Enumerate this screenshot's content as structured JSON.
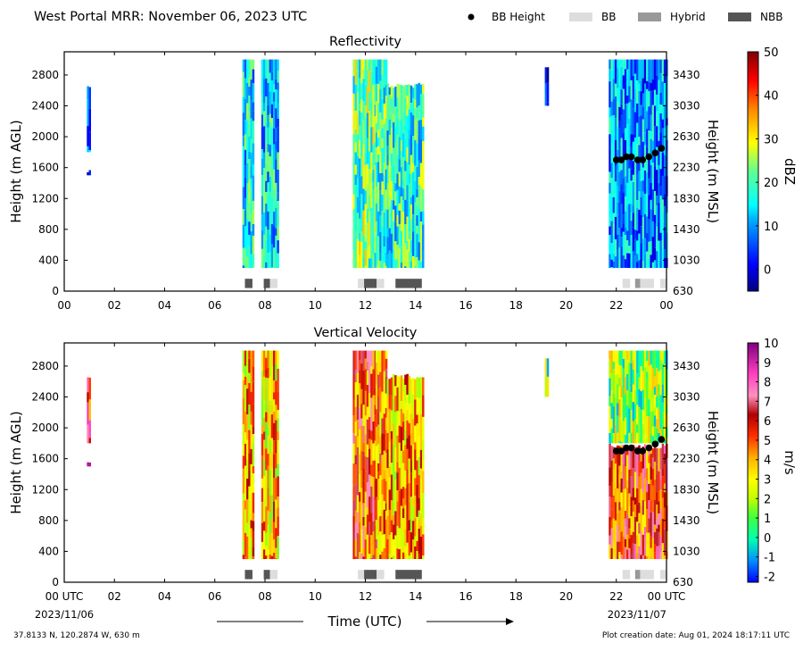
{
  "header": {
    "title": "West Portal MRR:  November 06, 2023 UTC",
    "legend": [
      {
        "label": "BB Height",
        "kind": "dot",
        "color": "#000000"
      },
      {
        "label": "BB",
        "kind": "rect",
        "color": "#dddddd"
      },
      {
        "label": "Hybrid",
        "kind": "rect",
        "color": "#999999"
      },
      {
        "label": "NBB",
        "kind": "rect",
        "color": "#555555"
      }
    ]
  },
  "chart_data": [
    {
      "type": "heatmap",
      "title": "Reflectivity",
      "ylabel": "Height (m AGL)",
      "y2label": "Height (m MSL)",
      "xlim": [
        0,
        24
      ],
      "ylim": [
        0,
        3100
      ],
      "x_ticks": [
        "00",
        "02",
        "04",
        "06",
        "08",
        "10",
        "12",
        "14",
        "16",
        "18",
        "20",
        "22",
        "00"
      ],
      "y_ticks": [
        0,
        400,
        800,
        1200,
        1600,
        2000,
        2400,
        2800
      ],
      "y2_ticks": [
        630,
        1030,
        1430,
        1830,
        2230,
        2630,
        3030,
        3430
      ],
      "colorbar": {
        "label": "dBZ",
        "range": [
          -5,
          50
        ],
        "ticks": [
          0,
          10,
          20,
          30,
          40,
          50
        ]
      },
      "echo_segments": [
        {
          "x_start": 0.9,
          "x_end": 1.0,
          "y_start": 1800,
          "y_end": 2700,
          "value": 8
        },
        {
          "x_start": 0.9,
          "x_end": 1.0,
          "y_start": 1500,
          "y_end": 1600,
          "value": 6
        },
        {
          "x_start": 7.1,
          "x_end": 7.5,
          "y_start": 300,
          "y_end": 3000,
          "value": 15
        },
        {
          "x_start": 7.85,
          "x_end": 8.5,
          "y_start": 300,
          "y_end": 3000,
          "value": 14
        },
        {
          "x_start": 11.5,
          "x_end": 12.4,
          "y_start": 300,
          "y_end": 3000,
          "value": 22
        },
        {
          "x_start": 12.4,
          "x_end": 12.85,
          "y_start": 300,
          "y_end": 3000,
          "value": 20
        },
        {
          "x_start": 12.85,
          "x_end": 14.3,
          "y_start": 300,
          "y_end": 2700,
          "value": 18
        },
        {
          "x_start": 19.15,
          "x_end": 19.25,
          "y_start": 2400,
          "y_end": 2900,
          "value": 4
        },
        {
          "x_start": 21.7,
          "x_end": 24.0,
          "y_start": 300,
          "y_end": 3000,
          "value": 10
        }
      ],
      "bright_band_height": {
        "x": [
          22.0,
          22.2,
          22.4,
          22.6,
          22.85,
          23.05,
          23.3,
          23.55,
          23.8
        ],
        "y": [
          1700,
          1700,
          1740,
          1740,
          1700,
          1700,
          1740,
          1790,
          1850
        ]
      },
      "bb_classification": [
        {
          "x_start": 7.2,
          "x_end": 7.5,
          "class": "NBB"
        },
        {
          "x_start": 7.95,
          "x_end": 8.2,
          "class": "NBB"
        },
        {
          "x_start": 8.2,
          "x_end": 8.5,
          "class": "BB"
        },
        {
          "x_start": 11.7,
          "x_end": 11.95,
          "class": "BB"
        },
        {
          "x_start": 11.95,
          "x_end": 12.45,
          "class": "NBB"
        },
        {
          "x_start": 12.45,
          "x_end": 12.75,
          "class": "BB"
        },
        {
          "x_start": 13.2,
          "x_end": 14.25,
          "class": "NBB"
        },
        {
          "x_start": 22.25,
          "x_end": 22.55,
          "class": "BB"
        },
        {
          "x_start": 22.75,
          "x_end": 22.95,
          "class": "Hybrid"
        },
        {
          "x_start": 22.95,
          "x_end": 23.5,
          "class": "BB"
        },
        {
          "x_start": 23.75,
          "x_end": 24.0,
          "class": "BB"
        }
      ]
    },
    {
      "type": "heatmap",
      "title": "Vertical Velocity",
      "ylabel": "Height (m AGL)",
      "y2label": "Height (m MSL)",
      "xlabel": "Time (UTC)",
      "xlim": [
        0,
        24
      ],
      "ylim": [
        0,
        3100
      ],
      "x_ticks": [
        "00 UTC",
        "02",
        "04",
        "06",
        "08",
        "10",
        "12",
        "14",
        "16",
        "18",
        "20",
        "22",
        "00 UTC"
      ],
      "x_date_labels": {
        "start": "2023/11/06",
        "end": "2023/11/07"
      },
      "y_ticks": [
        0,
        400,
        800,
        1200,
        1600,
        2000,
        2400,
        2800
      ],
      "y2_ticks": [
        630,
        1030,
        1430,
        1830,
        2230,
        2630,
        3030,
        3430
      ],
      "colorbar": {
        "label": "m/s",
        "range": [
          -2.3,
          10
        ],
        "ticks": [
          -2,
          -1,
          0,
          1,
          2,
          3,
          4,
          5,
          6,
          7,
          8,
          9,
          10
        ]
      },
      "echo_segments": [
        {
          "x_start": 0.9,
          "x_end": 1.0,
          "y_start": 1800,
          "y_end": 2700,
          "value": 6
        },
        {
          "x_start": 0.9,
          "x_end": 1.0,
          "y_start": 1500,
          "y_end": 1600,
          "value": 7
        },
        {
          "x_start": 7.1,
          "x_end": 7.5,
          "y_start": 300,
          "y_end": 3000,
          "value": 4
        },
        {
          "x_start": 7.85,
          "x_end": 8.5,
          "y_start": 300,
          "y_end": 3000,
          "value": 3.5
        },
        {
          "x_start": 11.5,
          "x_end": 12.4,
          "y_start": 300,
          "y_end": 3000,
          "value": 5
        },
        {
          "x_start": 12.4,
          "x_end": 12.85,
          "y_start": 300,
          "y_end": 3000,
          "value": 4.5
        },
        {
          "x_start": 12.85,
          "x_end": 14.3,
          "y_start": 300,
          "y_end": 2700,
          "value": 4
        },
        {
          "x_start": 19.15,
          "x_end": 19.25,
          "y_start": 2400,
          "y_end": 2900,
          "value": 1
        },
        {
          "x_start": 21.7,
          "x_end": 24.0,
          "y_start": 1800,
          "y_end": 3000,
          "value": 1.5
        },
        {
          "x_start": 21.7,
          "x_end": 24.0,
          "y_start": 300,
          "y_end": 1800,
          "value": 5.5
        }
      ],
      "bright_band_height": {
        "x": [
          22.0,
          22.2,
          22.4,
          22.6,
          22.85,
          23.05,
          23.3,
          23.55,
          23.8
        ],
        "y": [
          1700,
          1700,
          1740,
          1740,
          1700,
          1700,
          1740,
          1790,
          1850
        ]
      },
      "bb_classification": [
        {
          "x_start": 7.2,
          "x_end": 7.5,
          "class": "NBB"
        },
        {
          "x_start": 7.95,
          "x_end": 8.2,
          "class": "NBB"
        },
        {
          "x_start": 8.2,
          "x_end": 8.5,
          "class": "BB"
        },
        {
          "x_start": 11.7,
          "x_end": 11.95,
          "class": "BB"
        },
        {
          "x_start": 11.95,
          "x_end": 12.45,
          "class": "NBB"
        },
        {
          "x_start": 12.45,
          "x_end": 12.75,
          "class": "BB"
        },
        {
          "x_start": 13.2,
          "x_end": 14.25,
          "class": "NBB"
        },
        {
          "x_start": 22.25,
          "x_end": 22.55,
          "class": "BB"
        },
        {
          "x_start": 22.75,
          "x_end": 22.95,
          "class": "Hybrid"
        },
        {
          "x_start": 22.95,
          "x_end": 23.5,
          "class": "BB"
        },
        {
          "x_start": 23.75,
          "x_end": 24.0,
          "class": "BB"
        }
      ]
    }
  ],
  "footer": {
    "location": "37.8133 N, 120.2874 W, 630 m",
    "created": "Plot creation date: Aug 01, 2024 18:17:11 UTC"
  }
}
